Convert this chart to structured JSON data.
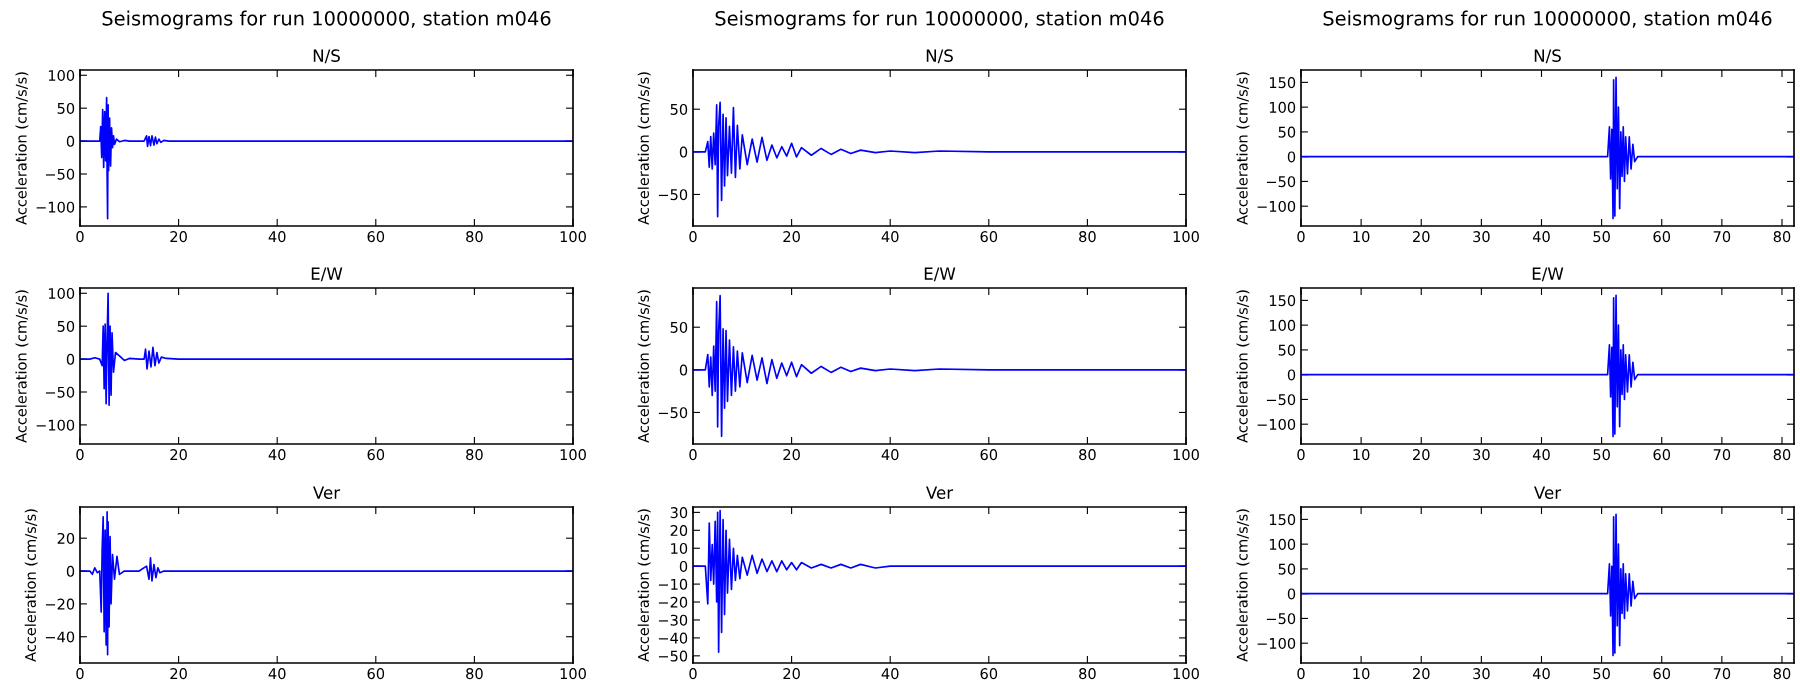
{
  "chart_data": [
    {
      "type": "line",
      "title": "Seismograms for run 10000000, station m046",
      "subtitle": "N/S",
      "ylabel": "Acceleration (cm/s/s)",
      "xlim": [
        0,
        100
      ],
      "ylim": [
        -129,
        108
      ],
      "xticks": [
        0,
        20,
        40,
        60,
        80,
        100
      ],
      "yticks": [
        -100,
        -50,
        0,
        50,
        100
      ],
      "grid": false,
      "line_style": "solid",
      "color": "#0000ff",
      "x": [
        0,
        4,
        4.2,
        4.4,
        4.6,
        4.8,
        5.0,
        5.2,
        5.4,
        5.5,
        5.6,
        5.7,
        5.8,
        6.0,
        6.2,
        6.4,
        6.6,
        6.8,
        7.0,
        7.4,
        8,
        9,
        10,
        12,
        13,
        13.5,
        13.7,
        14,
        14.3,
        14.6,
        15,
        15.3,
        15.6,
        16,
        16.4,
        17,
        18,
        100
      ],
      "values": [
        0,
        0,
        22,
        -25,
        48,
        -40,
        45,
        -30,
        66,
        -50,
        -118,
        55,
        -45,
        35,
        -38,
        20,
        -10,
        8,
        -5,
        3,
        -1,
        1,
        0,
        0,
        0,
        8,
        -8,
        7,
        -7,
        8,
        -6,
        6,
        -4,
        3,
        -2,
        1,
        0,
        0
      ]
    },
    {
      "type": "line",
      "title": "E/W",
      "ylabel": "Acceleration (cm/s/s)",
      "xlim": [
        0,
        100
      ],
      "ylim": [
        -129,
        108
      ],
      "xticks": [
        0,
        20,
        40,
        60,
        80,
        100
      ],
      "yticks": [
        -100,
        -50,
        0,
        50,
        100
      ],
      "grid": false,
      "line_style": "solid",
      "color": "#0000ff",
      "x": [
        0,
        2,
        3,
        4,
        4.5,
        4.7,
        4.9,
        5.1,
        5.3,
        5.5,
        5.7,
        5.9,
        6.1,
        6.3,
        6.5,
        6.8,
        7.2,
        8,
        9,
        10,
        12,
        13,
        13.3,
        13.6,
        14,
        14.4,
        14.8,
        15.2,
        15.6,
        16,
        16.5,
        17.5,
        20,
        100
      ],
      "values": [
        0,
        0,
        2,
        0,
        -10,
        50,
        -45,
        53,
        -68,
        30,
        100,
        -70,
        50,
        -55,
        40,
        -20,
        10,
        5,
        -2,
        1,
        0,
        0,
        15,
        -15,
        12,
        -12,
        18,
        -10,
        10,
        -6,
        3,
        1,
        0,
        0
      ]
    },
    {
      "type": "line",
      "title": "Ver",
      "ylabel": "Acceleration (cm/s/s)",
      "xlim": [
        0,
        100
      ],
      "ylim": [
        -56,
        39
      ],
      "xticks": [
        0,
        20,
        40,
        60,
        80,
        100
      ],
      "yticks": [
        -40,
        -20,
        0,
        20
      ],
      "grid": false,
      "line_style": "solid",
      "color": "#0000ff",
      "x": [
        0,
        2,
        2.5,
        3,
        3.5,
        4,
        4.3,
        4.5,
        4.7,
        4.9,
        5.1,
        5.3,
        5.5,
        5.6,
        5.7,
        5.9,
        6.1,
        6.3,
        6.6,
        7,
        7.5,
        8,
        9,
        10,
        12,
        13.5,
        14,
        14.3,
        14.6,
        15,
        15.4,
        15.8,
        16.2,
        17,
        18,
        100
      ],
      "values": [
        0,
        0,
        -2,
        2,
        -1,
        0,
        -25,
        14,
        33,
        -37,
        25,
        -45,
        36,
        -51,
        30,
        -34,
        21,
        -20,
        10,
        -5,
        9,
        -2,
        0,
        0,
        0,
        3,
        -5,
        8,
        -6,
        4,
        -4,
        2,
        -1,
        0,
        0,
        0
      ]
    },
    {
      "type": "line",
      "title": "Seismograms for run 10000000, station m046",
      "subtitle": "N/S",
      "ylabel": "Acceleration (cm/s/s)",
      "xlim": [
        0,
        100
      ],
      "ylim": [
        -87,
        96
      ],
      "xticks": [
        0,
        20,
        40,
        60,
        80,
        100
      ],
      "yticks": [
        -50,
        0,
        50
      ],
      "grid": false,
      "line_style": "solid",
      "color": "#0000ff",
      "x": [
        0,
        2.5,
        3,
        3.3,
        3.6,
        3.9,
        4.2,
        4.5,
        4.8,
        5.0,
        5.2,
        5.5,
        5.8,
        6.1,
        6.4,
        6.7,
        7.0,
        7.4,
        7.8,
        8.2,
        8.6,
        9.0,
        9.5,
        10,
        11,
        12,
        13,
        14,
        15,
        16,
        17,
        18,
        19,
        20,
        21,
        22,
        24,
        26,
        28,
        30,
        32,
        34,
        37,
        40,
        45,
        50,
        60,
        100
      ],
      "values": [
        0,
        0,
        12,
        -18,
        18,
        -20,
        22,
        -15,
        55,
        -76,
        30,
        58,
        -57,
        44,
        -40,
        40,
        -28,
        30,
        -25,
        52,
        -30,
        31,
        -20,
        20,
        -15,
        15,
        -12,
        17,
        -10,
        8,
        -7,
        6,
        -5,
        10,
        -6,
        5,
        -4,
        4,
        -3,
        3,
        -2,
        2,
        -1,
        1,
        -1,
        1,
        0,
        0
      ]
    },
    {
      "type": "line",
      "title": "E/W",
      "ylabel": "Acceleration (cm/s/s)",
      "xlim": [
        0,
        100
      ],
      "ylim": [
        -87,
        96
      ],
      "xticks": [
        0,
        20,
        40,
        60,
        80,
        100
      ],
      "yticks": [
        -50,
        0,
        50
      ],
      "grid": false,
      "line_style": "solid",
      "color": "#0000ff",
      "x": [
        0,
        2.5,
        3,
        3.3,
        3.6,
        3.9,
        4.2,
        4.5,
        4.8,
        5.0,
        5.2,
        5.5,
        5.8,
        6.1,
        6.4,
        6.7,
        7.0,
        7.4,
        7.8,
        8.2,
        8.6,
        9.0,
        9.5,
        10,
        11,
        12,
        13,
        14,
        15,
        16,
        17,
        18,
        19,
        20,
        21,
        22,
        24,
        26,
        28,
        30,
        32,
        34,
        37,
        40,
        45,
        50,
        60,
        100
      ],
      "values": [
        0,
        0,
        18,
        -20,
        15,
        -30,
        28,
        -25,
        80,
        -67,
        45,
        87,
        -78,
        48,
        -45,
        46,
        -37,
        35,
        -30,
        27,
        -25,
        22,
        -20,
        20,
        -15,
        17,
        -12,
        14,
        -16,
        12,
        -10,
        8,
        -7,
        9,
        -8,
        6,
        -4,
        4,
        -3,
        3,
        -2,
        2,
        -1,
        1,
        -1,
        1,
        0,
        0
      ]
    },
    {
      "type": "line",
      "title": "Ver",
      "ylabel": "Acceleration (cm/s/s)",
      "xlim": [
        0,
        100
      ],
      "ylim": [
        -54,
        33
      ],
      "xticks": [
        0,
        20,
        40,
        60,
        80,
        100
      ],
      "yticks": [
        -50,
        -40,
        -30,
        -20,
        -10,
        0,
        10,
        20,
        30
      ],
      "grid": false,
      "line_style": "solid",
      "color": "#0000ff",
      "x": [
        0,
        2.5,
        3,
        3.3,
        3.6,
        3.9,
        4.2,
        4.5,
        4.8,
        5.0,
        5.2,
        5.5,
        5.8,
        6.1,
        6.4,
        6.7,
        7.0,
        7.4,
        7.8,
        8.2,
        8.6,
        9.0,
        9.5,
        10,
        11,
        12,
        13,
        14,
        15,
        16,
        17,
        18,
        19,
        20,
        21,
        22,
        24,
        26,
        28,
        30,
        32,
        34,
        37,
        40,
        45,
        50,
        60,
        100
      ],
      "values": [
        0,
        0,
        -21,
        24,
        -8,
        12,
        -10,
        25,
        -20,
        30,
        -48,
        31,
        -37,
        26,
        -27,
        20,
        -15,
        15,
        -13,
        10,
        -8,
        6,
        -7,
        5,
        -5,
        6,
        -4,
        4,
        -3,
        3,
        -3,
        3,
        -2,
        2,
        -2,
        2,
        -1,
        1,
        -1,
        1,
        -1,
        1,
        -1,
        0,
        0,
        0,
        0,
        0
      ]
    },
    {
      "type": "line",
      "title": "Seismograms for run 10000000, station m046",
      "subtitle": "N/S",
      "ylabel": "Acceleration (cm/s/s)",
      "xlim": [
        0,
        82
      ],
      "ylim": [
        -140,
        175
      ],
      "xticks": [
        0,
        10,
        20,
        30,
        40,
        50,
        60,
        70,
        80
      ],
      "yticks": [
        -100,
        -50,
        0,
        50,
        100,
        150
      ],
      "grid": false,
      "line_style": "solid",
      "color": "#0000ff",
      "x": [
        0,
        51,
        51.3,
        51.5,
        51.7,
        51.9,
        52.0,
        52.2,
        52.4,
        52.6,
        52.8,
        53.0,
        53.2,
        53.4,
        53.6,
        53.8,
        54.0,
        54.3,
        54.6,
        54.9,
        55.2,
        55.5,
        56,
        82
      ],
      "values": [
        0,
        0,
        60,
        -45,
        55,
        -125,
        155,
        -120,
        160,
        -65,
        100,
        -105,
        50,
        -40,
        60,
        -50,
        40,
        -35,
        40,
        -25,
        25,
        -10,
        0,
        0
      ]
    },
    {
      "type": "line",
      "title": "E/W",
      "ylabel": "Acceleration (cm/s/s)",
      "xlim": [
        0,
        82
      ],
      "ylim": [
        -140,
        175
      ],
      "xticks": [
        0,
        10,
        20,
        30,
        40,
        50,
        60,
        70,
        80
      ],
      "yticks": [
        -100,
        -50,
        0,
        50,
        100,
        150
      ],
      "grid": false,
      "line_style": "solid",
      "color": "#0000ff",
      "x": [
        0,
        51,
        51.3,
        51.5,
        51.7,
        51.9,
        52.0,
        52.2,
        52.4,
        52.6,
        52.8,
        53.0,
        53.2,
        53.4,
        53.6,
        53.8,
        54.0,
        54.3,
        54.6,
        54.9,
        55.2,
        55.5,
        56,
        82
      ],
      "values": [
        0,
        0,
        60,
        -45,
        55,
        -125,
        155,
        -120,
        160,
        -65,
        100,
        -105,
        50,
        -40,
        60,
        -50,
        40,
        -35,
        40,
        -25,
        25,
        -10,
        0,
        0
      ]
    },
    {
      "type": "line",
      "title": "Ver",
      "ylabel": "Acceleration (cm/s/s)",
      "xlim": [
        0,
        82
      ],
      "ylim": [
        -140,
        175
      ],
      "xticks": [
        0,
        10,
        20,
        30,
        40,
        50,
        60,
        70,
        80
      ],
      "yticks": [
        -100,
        -50,
        0,
        50,
        100,
        150
      ],
      "grid": false,
      "line_style": "solid",
      "color": "#0000ff",
      "x": [
        0,
        51,
        51.3,
        51.5,
        51.7,
        51.9,
        52.0,
        52.2,
        52.4,
        52.6,
        52.8,
        53.0,
        53.2,
        53.4,
        53.6,
        53.8,
        54.0,
        54.3,
        54.6,
        54.9,
        55.2,
        55.5,
        56,
        82
      ],
      "values": [
        0,
        0,
        60,
        -45,
        55,
        -125,
        155,
        -120,
        160,
        -65,
        100,
        -105,
        50,
        -40,
        60,
        -50,
        40,
        -35,
        40,
        -25,
        25,
        -10,
        0,
        0
      ]
    }
  ]
}
